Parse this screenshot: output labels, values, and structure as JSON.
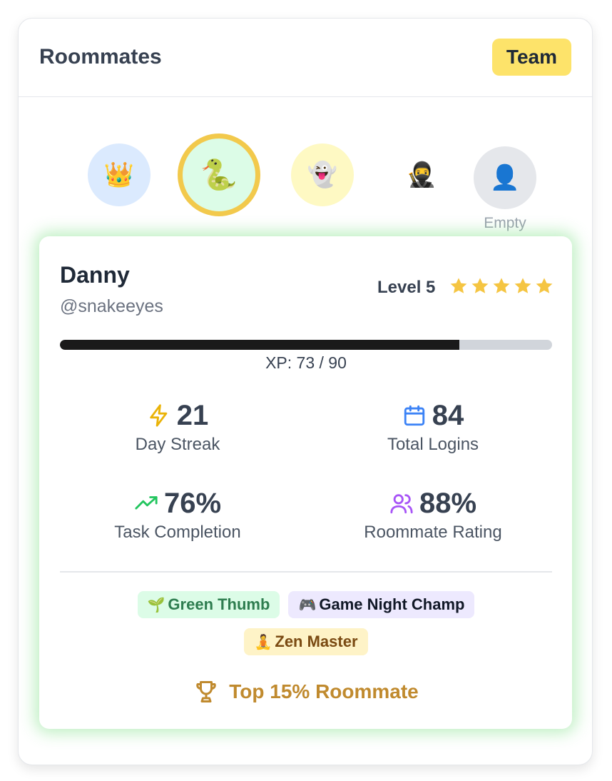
{
  "header": {
    "title": "Roommates",
    "team_label": "Team"
  },
  "avatars": [
    {
      "icon": "crown-icon",
      "emoji": "👑"
    },
    {
      "icon": "snake-icon",
      "emoji": "🐍",
      "selected": true
    },
    {
      "icon": "ghost-icon",
      "emoji": "👻"
    },
    {
      "icon": "ninja-icon",
      "emoji": "🥷"
    },
    {
      "icon": "person-icon",
      "emoji": "👤",
      "label": "Empty"
    }
  ],
  "profile": {
    "name": "Danny",
    "handle": "@snakeeyes",
    "level": "Level 5",
    "stars": 5,
    "xp_text": "XP: 73 / 90",
    "xp_current": 73,
    "xp_max": 90
  },
  "stats": {
    "streak": {
      "value": "21",
      "label": "Day Streak",
      "icon": "lightning-icon",
      "color": "#eab308"
    },
    "logins": {
      "value": "84",
      "label": "Total Logins",
      "icon": "calendar-icon",
      "color": "#3b82f6"
    },
    "task": {
      "value": "76%",
      "label": "Task Completion",
      "icon": "trending-up-icon",
      "color": "#22c55e"
    },
    "rating": {
      "value": "88%",
      "label": "Roommate Rating",
      "icon": "users-icon",
      "color": "#a855f7"
    }
  },
  "badges": [
    {
      "emoji": "🌱",
      "label": "Green Thumb",
      "color": "#dcfce7"
    },
    {
      "emoji": "🎮",
      "label": "Game Night Champ",
      "color": "#ede9fe"
    },
    {
      "emoji": "🧘",
      "label": "Zen Master",
      "color": "#fef3c7"
    }
  ],
  "rank": {
    "label": "Top 15% Roommate",
    "icon": "trophy-icon",
    "color": "#c08a2e"
  },
  "colors": {
    "accent_yellow": "#fde36a",
    "glow_green": "#6edc78",
    "star": "#f5c542"
  }
}
